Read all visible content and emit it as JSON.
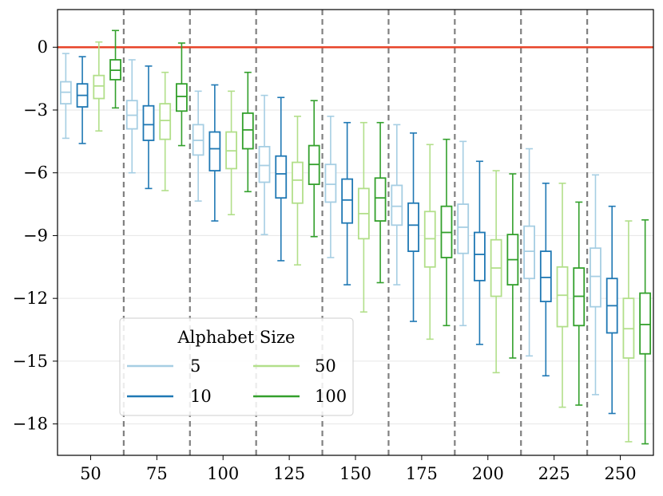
{
  "chart_data": {
    "type": "boxplot",
    "title": "",
    "xlabel": "",
    "ylabel": "",
    "ylim": [
      -19.5,
      1.8
    ],
    "y_ticks": [
      0,
      -3,
      -6,
      -9,
      -12,
      -15,
      -18
    ],
    "y_tick_labels": [
      "0",
      "−3",
      "−6",
      "−9",
      "−12",
      "−15",
      "−18"
    ],
    "categories": [
      "50",
      "75",
      "100",
      "125",
      "150",
      "175",
      "200",
      "225",
      "250"
    ],
    "reference_line": {
      "y": 0,
      "color": "#e8442a"
    },
    "legend": {
      "title": "Alphabet Size",
      "location": "lower-left",
      "ncol": 2
    },
    "series": [
      {
        "name": "5",
        "color": "#a6cee3",
        "boxes": [
          {
            "low": -4.35,
            "q1": -2.7,
            "median": -2.15,
            "q3": -1.65,
            "high": -0.3
          },
          {
            "low": -6.0,
            "q1": -3.9,
            "median": -3.25,
            "q3": -2.55,
            "high": -0.6
          },
          {
            "low": -7.35,
            "q1": -5.15,
            "median": -4.45,
            "q3": -3.7,
            "high": -2.1
          },
          {
            "low": -8.95,
            "q1": -6.45,
            "median": -5.65,
            "q3": -4.75,
            "high": -2.3
          },
          {
            "low": -10.05,
            "q1": -7.4,
            "median": -6.55,
            "q3": -5.6,
            "high": -3.3
          },
          {
            "low": -11.35,
            "q1": -8.5,
            "median": -7.6,
            "q3": -6.6,
            "high": -3.7
          },
          {
            "low": -13.3,
            "q1": -9.85,
            "median": -8.6,
            "q3": -7.5,
            "high": -4.5
          },
          {
            "low": -14.75,
            "q1": -11.05,
            "median": -9.75,
            "q3": -8.55,
            "high": -4.85
          },
          {
            "low": -16.6,
            "q1": -12.4,
            "median": -10.95,
            "q3": -9.6,
            "high": -6.1
          }
        ]
      },
      {
        "name": "10",
        "color": "#1f78b4",
        "boxes": [
          {
            "low": -4.6,
            "q1": -2.85,
            "median": -2.3,
            "q3": -1.75,
            "high": -0.45
          },
          {
            "low": -6.75,
            "q1": -4.45,
            "median": -3.7,
            "q3": -2.8,
            "high": -0.9
          },
          {
            "low": -8.3,
            "q1": -5.9,
            "median": -4.85,
            "q3": -4.05,
            "high": -1.8
          },
          {
            "low": -10.2,
            "q1": -7.2,
            "median": -6.05,
            "q3": -5.2,
            "high": -2.4
          },
          {
            "low": -11.35,
            "q1": -8.4,
            "median": -7.3,
            "q3": -6.3,
            "high": -3.6
          },
          {
            "low": -13.1,
            "q1": -9.75,
            "median": -8.5,
            "q3": -7.45,
            "high": -4.1
          },
          {
            "low": -14.2,
            "q1": -11.15,
            "median": -9.9,
            "q3": -8.85,
            "high": -5.45
          },
          {
            "low": -15.7,
            "q1": -12.15,
            "median": -11.0,
            "q3": -9.75,
            "high": -6.5
          },
          {
            "low": -17.5,
            "q1": -13.65,
            "median": -12.35,
            "q3": -11.05,
            "high": -7.6
          }
        ]
      },
      {
        "name": "50",
        "color": "#b2df8a",
        "boxes": [
          {
            "low": -4.0,
            "q1": -2.45,
            "median": -1.85,
            "q3": -1.35,
            "high": 0.25
          },
          {
            "low": -6.85,
            "q1": -4.4,
            "median": -3.5,
            "q3": -2.7,
            "high": -1.2
          },
          {
            "low": -8.0,
            "q1": -5.8,
            "median": -4.95,
            "q3": -4.05,
            "high": -2.1
          },
          {
            "low": -10.4,
            "q1": -7.45,
            "median": -6.35,
            "q3": -5.5,
            "high": -3.3
          },
          {
            "low": -12.65,
            "q1": -9.15,
            "median": -7.95,
            "q3": -6.75,
            "high": -3.6
          },
          {
            "low": -13.95,
            "q1": -10.5,
            "median": -9.15,
            "q3": -7.85,
            "high": -4.65
          },
          {
            "low": -15.55,
            "q1": -11.9,
            "median": -10.55,
            "q3": -9.2,
            "high": -5.9
          },
          {
            "low": -17.2,
            "q1": -13.35,
            "median": -11.85,
            "q3": -10.5,
            "high": -6.5
          },
          {
            "low": -18.85,
            "q1": -14.85,
            "median": -13.45,
            "q3": -12.0,
            "high": -8.3
          }
        ]
      },
      {
        "name": "100",
        "color": "#33a02c",
        "boxes": [
          {
            "low": -2.9,
            "q1": -1.55,
            "median": -1.1,
            "q3": -0.6,
            "high": 0.8
          },
          {
            "low": -4.7,
            "q1": -3.05,
            "median": -2.35,
            "q3": -1.75,
            "high": 0.2
          },
          {
            "low": -6.9,
            "q1": -4.85,
            "median": -3.95,
            "q3": -3.15,
            "high": -1.2
          },
          {
            "low": -9.05,
            "q1": -6.55,
            "median": -5.6,
            "q3": -4.7,
            "high": -2.55
          },
          {
            "low": -11.25,
            "q1": -8.3,
            "median": -7.2,
            "q3": -6.25,
            "high": -3.6
          },
          {
            "low": -13.3,
            "q1": -10.05,
            "median": -8.85,
            "q3": -7.6,
            "high": -4.4
          },
          {
            "low": -14.85,
            "q1": -11.35,
            "median": -10.15,
            "q3": -8.95,
            "high": -6.05
          },
          {
            "low": -17.1,
            "q1": -13.3,
            "median": -11.9,
            "q3": -10.55,
            "high": -7.4
          },
          {
            "low": -18.95,
            "q1": -14.65,
            "median": -13.25,
            "q3": -11.75,
            "high": -8.25
          }
        ]
      }
    ]
  }
}
